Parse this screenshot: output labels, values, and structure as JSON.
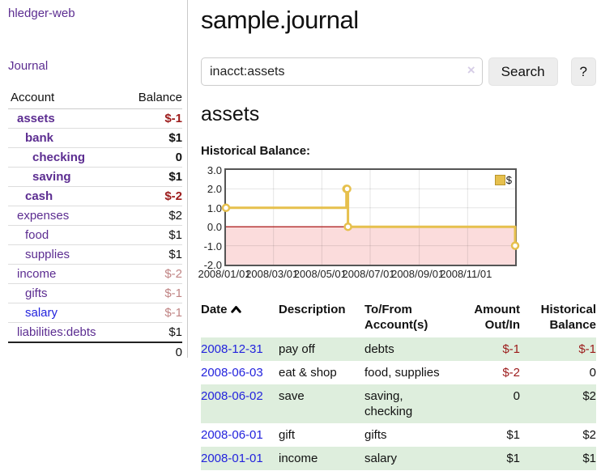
{
  "app": {
    "title": "hledger-web",
    "nav_journal": "Journal"
  },
  "colors": {
    "link_purple": "#5c2d91",
    "link_blue": "#2323dd",
    "negative_strong": "#9c1b1b",
    "negative_soft": "#c08484",
    "row_green": "#deeedd",
    "chart_border": "#555555",
    "chart_line_gold": "#e6c04d",
    "chart_negative_pink": "#fbdcdc",
    "zero_line_red": "#a40000",
    "button_gray": "#ededed"
  },
  "sidebar": {
    "col_account": "Account",
    "col_balance": "Balance",
    "accounts": [
      {
        "name": "assets",
        "depth": 1,
        "balance": "$-1",
        "bold": true,
        "negative": "strong",
        "link_style": "purple"
      },
      {
        "name": "bank",
        "depth": 2,
        "balance": "$1",
        "bold": true,
        "negative": "none",
        "link_style": "purple"
      },
      {
        "name": "checking",
        "depth": 3,
        "balance": "0",
        "bold": true,
        "negative": "none",
        "link_style": "purple"
      },
      {
        "name": "saving",
        "depth": 3,
        "balance": "$1",
        "bold": true,
        "negative": "none",
        "link_style": "purple"
      },
      {
        "name": "cash",
        "depth": 2,
        "balance": "$-2",
        "bold": true,
        "negative": "strong",
        "link_style": "purple"
      },
      {
        "name": "expenses",
        "depth": 1,
        "balance": "$2",
        "bold": false,
        "negative": "none",
        "link_style": "purple"
      },
      {
        "name": "food",
        "depth": 2,
        "balance": "$1",
        "bold": false,
        "negative": "none",
        "link_style": "purple"
      },
      {
        "name": "supplies",
        "depth": 2,
        "balance": "$1",
        "bold": false,
        "negative": "none",
        "link_style": "purple"
      },
      {
        "name": "income",
        "depth": 1,
        "balance": "$-2",
        "bold": false,
        "negative": "soft",
        "link_style": "purple"
      },
      {
        "name": "gifts",
        "depth": 2,
        "balance": "$-1",
        "bold": false,
        "negative": "soft",
        "link_style": "purple"
      },
      {
        "name": "salary",
        "depth": 2,
        "balance": "$-1",
        "bold": false,
        "negative": "soft",
        "link_style": "blue"
      },
      {
        "name": "liabilities:debts",
        "depth": 1,
        "balance": "$1",
        "bold": false,
        "negative": "none",
        "link_style": "purple"
      }
    ],
    "total": "0"
  },
  "header": {
    "title": "sample.journal"
  },
  "search": {
    "value": "inacct:assets",
    "clear_icon": "×",
    "button_label": "Search",
    "help_label": "?"
  },
  "account_page": {
    "title": "assets",
    "chart_label": "Historical Balance:"
  },
  "chart_data": {
    "type": "line",
    "step": true,
    "title": "Historical Balance:",
    "x_range": [
      "2008-01-01",
      "2008-12-31"
    ],
    "ylim": [
      -2,
      3
    ],
    "grid": true,
    "y_ticks": [
      3,
      2,
      1,
      0,
      -1,
      -2
    ],
    "y_tick_labels": [
      "3.0",
      "2.0",
      "1.0",
      "0.0",
      "-1.0",
      "-2.0"
    ],
    "x_tick_dates": [
      "2008-01-01",
      "2008-03-01",
      "2008-05-01",
      "2008-07-01",
      "2008-09-01",
      "2008-11-01"
    ],
    "x_tick_labels": [
      "2008/01/01",
      "2008/03/01",
      "2008/05/01",
      "2008/07/01",
      "2008/09/01",
      "2008/11/01"
    ],
    "series": [
      {
        "name": "$",
        "color": "#e6c04d",
        "points": [
          [
            "2008-01-01",
            1
          ],
          [
            "2008-06-01",
            2
          ],
          [
            "2008-06-02",
            2
          ],
          [
            "2008-06-03",
            0
          ],
          [
            "2008-12-31",
            -1
          ]
        ]
      }
    ],
    "legend": {
      "label": "$",
      "position": "top-right"
    },
    "negative_region_fill": "#fbdcdc",
    "zero_line_color": "#a40000"
  },
  "register": {
    "columns": {
      "date": "Date",
      "description": "Description",
      "accounts": "To/From Account(s)",
      "amount": "Amount Out/In",
      "balance": "Historical Balance"
    },
    "sort_icon": "chevron-up",
    "rows": [
      {
        "date": "2008-12-31",
        "description": "pay off",
        "accounts": "debts",
        "amount": "$-1",
        "balance": "$-1",
        "amount_negative": true,
        "balance_negative": true,
        "shaded": true
      },
      {
        "date": "2008-06-03",
        "description": "eat & shop",
        "accounts": "food, supplies",
        "amount": "$-2",
        "balance": "0",
        "amount_negative": true,
        "balance_negative": false,
        "shaded": false
      },
      {
        "date": "2008-06-02",
        "description": "save",
        "accounts": "saving, checking",
        "amount": "0",
        "balance": "$2",
        "amount_negative": false,
        "balance_negative": false,
        "shaded": true
      },
      {
        "date": "2008-06-01",
        "description": "gift",
        "accounts": "gifts",
        "amount": "$1",
        "balance": "$2",
        "amount_negative": false,
        "balance_negative": false,
        "shaded": false
      },
      {
        "date": "2008-01-01",
        "description": "income",
        "accounts": "salary",
        "amount": "$1",
        "balance": "$1",
        "amount_negative": false,
        "balance_negative": false,
        "shaded": true
      }
    ]
  }
}
